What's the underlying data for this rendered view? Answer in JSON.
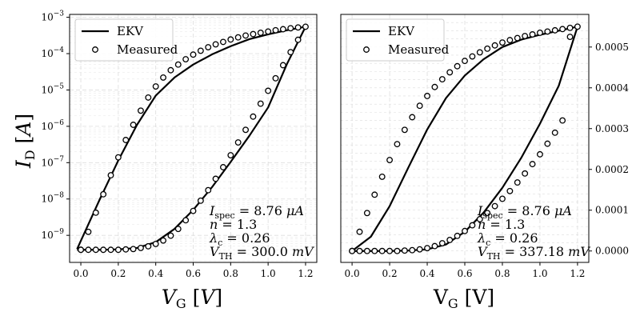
{
  "figure": {
    "ylabel": "I_D [A]",
    "xlabel": "V_G [V]"
  },
  "colors": {
    "line": "#000000",
    "grid": "#dddddd",
    "background": "#ffffff"
  },
  "chart_data": [
    {
      "type": "line",
      "panel": "left",
      "xlabel": "V_G [V]",
      "ylabel": "I_D [A]",
      "yscale": "log",
      "xlim": [
        -0.06,
        1.26
      ],
      "ylim": [
        1.8e-10,
        0.0012
      ],
      "xticks": [
        0.0,
        0.2,
        0.4,
        0.6,
        0.8,
        1.0,
        1.2
      ],
      "xtick_labels": [
        "0.0",
        "0.2",
        "0.4",
        "0.6",
        "0.8",
        "1.0",
        "1.2"
      ],
      "yticks": [
        1e-09,
        1e-08,
        1e-07,
        1e-06,
        1e-05,
        0.0001,
        0.001
      ],
      "ytick_labels": [
        "10^-9",
        "10^-8",
        "10^-7",
        "10^-6",
        "10^-5",
        "10^-4",
        "10^-3"
      ],
      "grid": true,
      "legend": {
        "position": "top-left",
        "entries": [
          "EKV",
          "Measured"
        ]
      },
      "series": [
        {
          "name": "EKV",
          "style": "line",
          "segments": [
            {
              "x": [
                -0.02,
                0.1,
                0.2,
                0.3,
                0.4,
                0.5,
                0.6,
                0.7,
                0.8,
                0.9,
                1.0,
                1.1,
                1.2
              ],
              "y": [
                4.2e-10,
                9.5e-09,
                1.15e-07,
                1.1e-06,
                7e-06,
                2.2e-05,
                5e-05,
                9.5e-05,
                0.00016,
                0.00025,
                0.00034,
                0.00044,
                0.00055
              ]
            },
            {
              "x": [
                -0.02,
                0.1,
                0.2,
                0.3,
                0.4,
                0.5,
                0.6,
                0.7,
                0.8,
                0.9,
                1.0,
                1.1,
                1.2
              ],
              "y": [
                4e-10,
                4e-10,
                4.1e-10,
                4.5e-10,
                6.5e-10,
                1.5e-09,
                5e-09,
                2.1e-08,
                1.05e-07,
                5.5e-07,
                3.3e-06,
                5.1e-05,
                0.00055
              ]
            }
          ]
        },
        {
          "name": "Measured",
          "style": "markers",
          "segments": [
            {
              "x": [
                0.0,
                0.04,
                0.08,
                0.12,
                0.16,
                0.2,
                0.24,
                0.28,
                0.32,
                0.36,
                0.4,
                0.44,
                0.48,
                0.52,
                0.56,
                0.6,
                0.64,
                0.68,
                0.72,
                0.76,
                0.8,
                0.84,
                0.88,
                0.92,
                0.96,
                1.0,
                1.04,
                1.08,
                1.12,
                1.16,
                1.2
              ],
              "y": [
                4e-10,
                1.25e-09,
                4.2e-09,
                1.35e-08,
                4.5e-08,
                1.4e-07,
                4.2e-07,
                1.1e-06,
                2.7e-06,
                6.2e-06,
                1.25e-05,
                2.2e-05,
                3.5e-05,
                5e-05,
                7e-05,
                9.4e-05,
                0.00012,
                0.00015,
                0.00018,
                0.00021,
                0.000245,
                0.00028,
                0.000315,
                0.000345,
                0.000375,
                0.000405,
                0.00044,
                0.00047,
                0.0005,
                0.000525,
                0.00055
              ]
            },
            {
              "x": [
                0.0,
                0.04,
                0.08,
                0.12,
                0.16,
                0.2,
                0.24,
                0.28,
                0.32,
                0.36,
                0.4,
                0.44,
                0.48,
                0.52,
                0.56,
                0.6,
                0.64,
                0.68,
                0.72,
                0.76,
                0.8,
                0.84,
                0.88,
                0.92,
                0.96,
                1.0,
                1.04,
                1.08,
                1.12,
                1.16
              ],
              "y": [
                4e-10,
                4e-10,
                4e-10,
                4e-10,
                4e-10,
                4e-10,
                4.1e-10,
                4.2e-10,
                4.5e-10,
                5e-10,
                5.8e-10,
                7.2e-10,
                9.8e-10,
                1.5e-09,
                2.6e-09,
                4.7e-09,
                9e-09,
                1.75e-08,
                3.6e-08,
                7.5e-08,
                1.6e-07,
                3.6e-07,
                8e-07,
                1.85e-06,
                4.2e-06,
                9.5e-06,
                2.1e-05,
                4.8e-05,
                0.00011,
                0.00024
              ]
            }
          ]
        }
      ],
      "annotation": {
        "ispec": "8.76",
        "ispec_unit": "μA",
        "n": "1.3",
        "lambda_c": "0.26",
        "vth": "300.0",
        "vth_unit": "mV"
      }
    },
    {
      "type": "line",
      "panel": "right",
      "xlabel": "V_G [V]",
      "yscale": "linear",
      "yaxis_position": "right",
      "xlim": [
        -0.06,
        1.26
      ],
      "ylim": [
        -2.8e-05,
        0.00058
      ],
      "xticks": [
        0.0,
        0.2,
        0.4,
        0.6,
        0.8,
        1.0,
        1.2
      ],
      "xtick_labels": [
        "0.0",
        "0.2",
        "0.4",
        "0.6",
        "0.8",
        "1.0",
        "1.2"
      ],
      "yticks": [
        0.0,
        0.0001,
        0.0002,
        0.0003,
        0.0004,
        0.0005
      ],
      "ytick_labels": [
        "0.0000",
        "0.0001",
        "0.0002",
        "0.0003",
        "0.0004",
        "0.0005"
      ],
      "grid": true,
      "legend": {
        "position": "top-left",
        "entries": [
          "EKV",
          "Measured"
        ]
      },
      "series": [
        {
          "name": "EKV",
          "style": "line",
          "segments": [
            {
              "x": [
                0.0,
                0.1,
                0.2,
                0.3,
                0.4,
                0.5,
                0.6,
                0.7,
                0.8,
                0.9,
                1.0,
                1.1,
                1.2
              ],
              "y": [
                0.0,
                3.5e-05,
                0.00011,
                0.000205,
                0.000298,
                0.000375,
                0.00043,
                0.00047,
                0.0005,
                0.000518,
                0.00053,
                0.00054,
                0.00055
              ]
            },
            {
              "x": [
                0.0,
                0.1,
                0.2,
                0.3,
                0.4,
                0.5,
                0.6,
                0.7,
                0.8,
                0.9,
                1.0,
                1.1,
                1.2
              ],
              "y": [
                0.0,
                0.0,
                0.0,
                1e-06,
                4e-06,
                1.6e-05,
                4.7e-05,
                9.4e-05,
                0.000155,
                0.000228,
                0.000312,
                0.000405,
                0.00055
              ]
            }
          ]
        },
        {
          "name": "Measured",
          "style": "markers",
          "segments": [
            {
              "x": [
                0.0,
                0.04,
                0.08,
                0.12,
                0.16,
                0.2,
                0.24,
                0.28,
                0.32,
                0.36,
                0.4,
                0.44,
                0.48,
                0.52,
                0.56,
                0.6,
                0.64,
                0.68,
                0.72,
                0.76,
                0.8,
                0.84,
                0.88,
                0.92,
                0.96,
                1.0,
                1.04,
                1.08,
                1.12,
                1.16,
                1.2
              ],
              "y": [
                0.0,
                4.7e-05,
                9.3e-05,
                0.000138,
                0.000182,
                0.000223,
                0.000262,
                0.000297,
                0.000328,
                0.000356,
                0.00038,
                0.000402,
                0.000421,
                0.000438,
                0.000453,
                0.000466,
                0.000477,
                0.000487,
                0.000496,
                0.000504,
                0.000511,
                0.000517,
                0.000522,
                0.000527,
                0.000531,
                0.000535,
                0.000538,
                0.000541,
                0.000544,
                0.000547,
                0.00055
              ]
            },
            {
              "x": [
                0.0,
                0.04,
                0.08,
                0.12,
                0.16,
                0.2,
                0.24,
                0.28,
                0.32,
                0.36,
                0.4,
                0.44,
                0.48,
                0.52,
                0.56,
                0.6,
                0.64,
                0.68,
                0.72,
                0.76,
                0.8,
                0.84,
                0.88,
                0.92,
                0.96,
                1.0,
                1.04,
                1.08,
                1.12,
                1.16
              ],
              "y": [
                0.0,
                0.0,
                0.0,
                0.0,
                0.0,
                0.0,
                0.0,
                1e-06,
                2e-06,
                4e-06,
                7e-06,
                1.2e-05,
                1.9e-05,
                2.7e-05,
                3.7e-05,
                4.9e-05,
                6.3e-05,
                7.8e-05,
                9.3e-05,
                0.00011,
                0.000128,
                0.000147,
                0.000168,
                0.00019,
                0.000213,
                0.000237,
                0.000263,
                0.00029,
                0.00032,
                0.000525
              ]
            }
          ]
        }
      ],
      "annotation": {
        "ispec": "8.76",
        "ispec_unit": "μA",
        "n": "1.3",
        "lambda_c": "0.26",
        "vth": "337.18",
        "vth_unit": "mV"
      }
    }
  ]
}
